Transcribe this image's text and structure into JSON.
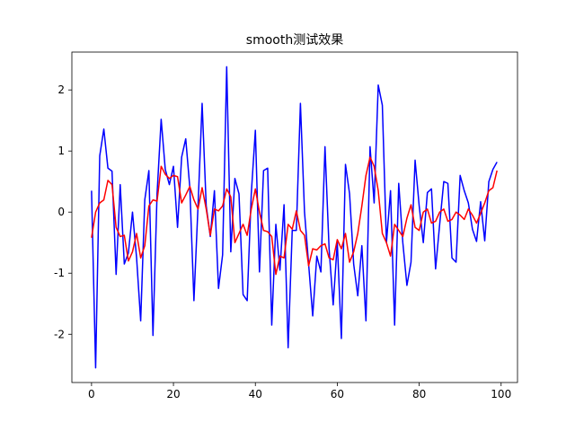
{
  "chart_data": {
    "type": "line",
    "title": "smooth测试效果",
    "x": [
      0,
      1,
      2,
      3,
      4,
      5,
      6,
      7,
      8,
      9,
      10,
      11,
      12,
      13,
      14,
      15,
      16,
      17,
      18,
      19,
      20,
      21,
      22,
      23,
      24,
      25,
      26,
      27,
      28,
      29,
      30,
      31,
      32,
      33,
      34,
      35,
      36,
      37,
      38,
      39,
      40,
      41,
      42,
      43,
      44,
      45,
      46,
      47,
      48,
      49,
      50,
      51,
      52,
      53,
      54,
      55,
      56,
      57,
      58,
      59,
      60,
      61,
      62,
      63,
      64,
      65,
      66,
      67,
      68,
      69,
      70,
      71,
      72,
      73,
      74,
      75,
      76,
      77,
      78,
      79,
      80,
      81,
      82,
      83,
      84,
      85,
      86,
      87,
      88,
      89,
      90,
      91,
      92,
      93,
      94,
      95,
      96,
      97,
      98,
      99
    ],
    "series": [
      {
        "color": "#0000ff",
        "values": [
          0.35,
          -2.55,
          0.92,
          1.36,
          0.72,
          0.67,
          -1.02,
          0.45,
          -0.85,
          -0.67,
          0.0,
          -0.75,
          -1.78,
          0.2,
          0.68,
          -2.02,
          0.3,
          1.52,
          0.7,
          0.45,
          0.75,
          -0.25,
          0.9,
          1.2,
          0.4,
          -1.45,
          0.1,
          1.78,
          0.1,
          -0.4,
          0.35,
          -1.25,
          -0.7,
          2.38,
          -0.65,
          0.55,
          0.3,
          -1.35,
          -1.45,
          0.3,
          1.34,
          -0.98,
          0.68,
          0.72,
          -1.85,
          -0.2,
          -0.95,
          0.12,
          -2.22,
          -0.3,
          -0.3,
          1.78,
          0.0,
          -0.85,
          -1.7,
          -0.72,
          -0.98,
          1.07,
          -0.6,
          -1.52,
          -0.5,
          -2.07,
          0.78,
          0.3,
          -0.85,
          -1.37,
          -0.55,
          -1.78,
          1.07,
          0.15,
          2.08,
          1.75,
          -0.5,
          0.35,
          -1.85,
          0.47,
          -0.5,
          -1.2,
          -0.82,
          0.85,
          0.1,
          -0.5,
          0.32,
          0.38,
          -0.93,
          -0.2,
          0.5,
          0.47,
          -0.75,
          -0.82,
          0.6,
          0.35,
          0.15,
          -0.28,
          -0.48,
          0.17,
          -0.47,
          0.5,
          0.7,
          0.82
        ]
      },
      {
        "color": "#ff0000",
        "values": [
          -0.42,
          0.0,
          0.15,
          0.2,
          0.52,
          0.45,
          -0.25,
          -0.4,
          -0.38,
          -0.8,
          -0.65,
          -0.35,
          -0.75,
          -0.55,
          0.1,
          0.2,
          0.18,
          0.75,
          0.62,
          0.55,
          0.6,
          0.58,
          0.15,
          0.28,
          0.42,
          0.2,
          0.05,
          0.4,
          0.05,
          -0.38,
          0.05,
          0.02,
          0.1,
          0.38,
          0.25,
          -0.5,
          -0.35,
          -0.2,
          -0.38,
          0.05,
          0.38,
          0.0,
          -0.3,
          -0.32,
          -0.4,
          -1.02,
          -0.72,
          -0.75,
          -0.2,
          -0.28,
          0.02,
          -0.3,
          -0.38,
          -0.88,
          -0.6,
          -0.62,
          -0.55,
          -0.52,
          -0.75,
          -0.78,
          -0.45,
          -0.6,
          -0.35,
          -0.82,
          -0.65,
          -0.35,
          0.1,
          0.6,
          0.9,
          0.75,
          0.35,
          -0.35,
          -0.5,
          -0.72,
          -0.2,
          -0.3,
          -0.4,
          -0.1,
          0.12,
          -0.25,
          -0.3,
          0.0,
          0.05,
          -0.18,
          -0.15,
          0.0,
          0.05,
          -0.15,
          -0.12,
          0.0,
          -0.05,
          -0.12,
          0.05,
          -0.05,
          -0.18,
          -0.02,
          0.15,
          0.35,
          0.4,
          0.68
        ]
      }
    ],
    "xlim": [
      -4.8,
      104
    ],
    "xticks": [
      0,
      20,
      40,
      60,
      80,
      100
    ],
    "ylim": [
      -2.79,
      2.62
    ],
    "yticks": [
      -2,
      -1,
      0,
      1,
      2
    ]
  }
}
